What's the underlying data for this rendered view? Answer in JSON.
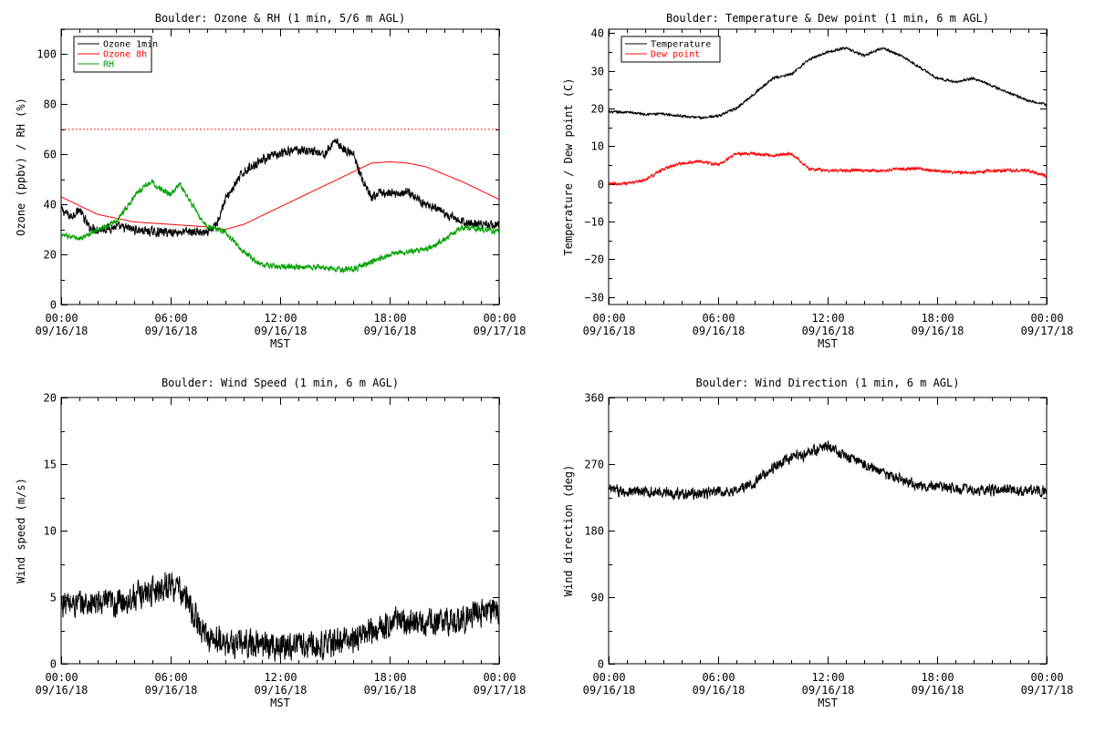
{
  "chart_data": [
    {
      "type": "line",
      "title": "Boulder: Ozone & RH (1 min, 5/6 m AGL)",
      "xlabel": "MST",
      "ylabel": "Ozone (ppbv) / RH (%)",
      "xlim": [
        0,
        24
      ],
      "ylim": [
        0,
        110
      ],
      "x_ticks": [
        0,
        6,
        12,
        18,
        24
      ],
      "x_tick_labels": [
        [
          "00:00",
          "09/16/18"
        ],
        [
          "06:00",
          "09/16/18"
        ],
        [
          "12:00",
          "09/16/18"
        ],
        [
          "18:00",
          "09/16/18"
        ],
        [
          "00:00",
          "09/17/18"
        ]
      ],
      "y_ticks": [
        0,
        20,
        40,
        60,
        80,
        100
      ],
      "y_tick_labels": [
        "0",
        "20",
        "40",
        "60",
        "80",
        "100"
      ],
      "legend_position": "top-left",
      "reference_line": {
        "y": 70,
        "color": "#ff0000",
        "style": "dotted"
      },
      "series": [
        {
          "name": "Ozone 1min",
          "color": "#000000",
          "noise": 2.5,
          "x": [
            0,
            0.5,
            1,
            1.5,
            2,
            3,
            4,
            5,
            6,
            7,
            7.5,
            8,
            8.5,
            9,
            10,
            11,
            12,
            13,
            14,
            14.5,
            15,
            15.5,
            16,
            16.5,
            17,
            17.5,
            18,
            19,
            20,
            21,
            22,
            23,
            24
          ],
          "y": [
            38,
            35,
            38,
            31,
            30,
            31,
            30,
            29,
            29,
            29,
            29,
            28,
            32,
            42,
            53,
            58,
            60,
            62,
            61,
            60,
            66,
            62,
            60,
            50,
            42,
            45,
            44,
            45,
            40,
            36,
            33,
            32,
            32
          ]
        },
        {
          "name": "Ozone 8h",
          "color": "#ff0000",
          "noise": 0,
          "x": [
            0,
            2,
            4,
            6,
            8,
            9,
            10,
            12,
            14,
            16,
            17,
            18,
            19,
            20,
            22,
            24
          ],
          "y": [
            43,
            36,
            33,
            32,
            31,
            30,
            32,
            39,
            46,
            53,
            56.5,
            57,
            56.5,
            55,
            49,
            42
          ]
        },
        {
          "name": "RH",
          "color": "#00a000",
          "noise": 1.5,
          "x": [
            0,
            1,
            2,
            3,
            4,
            4.5,
            5,
            5.5,
            6,
            6.5,
            7,
            7.5,
            8,
            9,
            10,
            11,
            12,
            13,
            14,
            15,
            16,
            17,
            18,
            19,
            20,
            21,
            22,
            23,
            24
          ],
          "y": [
            28,
            26,
            30,
            33,
            43,
            47,
            49,
            46,
            44,
            48,
            42,
            36,
            31,
            29,
            21,
            16,
            15,
            15,
            15,
            14,
            14,
            17,
            20,
            21,
            22,
            26,
            31,
            30,
            29
          ]
        }
      ]
    },
    {
      "type": "line",
      "title": "Boulder: Temperature & Dew point (1 min, 6 m AGL)",
      "xlabel": "MST",
      "ylabel": "Temperature / Dew point (C)",
      "xlim": [
        0,
        24
      ],
      "ylim": [
        -32,
        41
      ],
      "x_ticks": [
        0,
        6,
        12,
        18,
        24
      ],
      "x_tick_labels": [
        [
          "00:00",
          "09/16/18"
        ],
        [
          "06:00",
          "09/16/18"
        ],
        [
          "12:00",
          "09/16/18"
        ],
        [
          "18:00",
          "09/16/18"
        ],
        [
          "00:00",
          "09/17/18"
        ]
      ],
      "y_ticks": [
        -30,
        -20,
        -10,
        0,
        10,
        20,
        30,
        40
      ],
      "y_tick_labels": [
        "−30",
        "−20",
        "−10",
        "0",
        "10",
        "20",
        "30",
        "40"
      ],
      "legend_position": "top-left",
      "series": [
        {
          "name": "Temperature",
          "color": "#000000",
          "noise": 0.4,
          "x": [
            0,
            1,
            2,
            3,
            4,
            5,
            6,
            7,
            8,
            9,
            10,
            11,
            12,
            13,
            14,
            15,
            16,
            17,
            18,
            19,
            20,
            21,
            22,
            23,
            24
          ],
          "y": [
            19,
            19,
            18.5,
            18.5,
            18,
            17.5,
            18,
            20,
            24,
            28,
            29,
            33,
            35,
            36,
            34,
            36,
            34,
            31,
            28,
            27,
            28,
            26,
            24,
            22,
            21
          ]
        },
        {
          "name": "Dew point",
          "color": "#ff0000",
          "noise": 0.5,
          "x": [
            0,
            1,
            2,
            3,
            4,
            5,
            6,
            7,
            8,
            9,
            10,
            11,
            12,
            13,
            14,
            15,
            16,
            17,
            18,
            19,
            20,
            21,
            22,
            23,
            24
          ],
          "y": [
            0,
            0,
            1,
            4,
            5.5,
            6,
            5,
            8,
            8,
            7.5,
            8,
            4,
            3.5,
            3.5,
            3.5,
            3.5,
            4,
            4,
            3.5,
            3,
            3,
            3.5,
            3.5,
            3.5,
            2
          ]
        }
      ]
    },
    {
      "type": "line",
      "title": "Boulder: Wind Speed (1 min, 6 m AGL)",
      "xlabel": "MST",
      "ylabel": "Wind speed (m/s)",
      "xlim": [
        0,
        24
      ],
      "ylim": [
        0,
        20
      ],
      "x_ticks": [
        0,
        6,
        12,
        18,
        24
      ],
      "x_tick_labels": [
        [
          "00:00",
          "09/16/18"
        ],
        [
          "06:00",
          "09/16/18"
        ],
        [
          "12:00",
          "09/16/18"
        ],
        [
          "18:00",
          "09/16/18"
        ],
        [
          "00:00",
          "09/17/18"
        ]
      ],
      "y_ticks": [
        0,
        5,
        10,
        15,
        20
      ],
      "y_tick_labels": [
        "0",
        "5",
        "10",
        "15",
        "20"
      ],
      "series": [
        {
          "name": "",
          "color": "#000000",
          "noise": 1.4,
          "x": [
            0,
            1,
            2,
            3,
            4,
            5,
            6,
            6.5,
            7,
            7.5,
            8,
            9,
            10,
            11,
            12,
            13,
            14,
            15,
            16,
            17,
            18,
            18.5,
            19,
            20,
            21,
            22,
            23,
            24
          ],
          "y": [
            4.5,
            4.5,
            4.5,
            4.5,
            5,
            5.5,
            6,
            5.5,
            4.5,
            3,
            2,
            1.5,
            1.5,
            1.5,
            1.3,
            1.5,
            1.4,
            1.6,
            1.8,
            2.5,
            3,
            3.5,
            3,
            3,
            3.2,
            3.3,
            3.8,
            4
          ]
        }
      ]
    },
    {
      "type": "line",
      "title": "Boulder: Wind Direction (1 min, 6 m AGL)",
      "xlabel": "MST",
      "ylabel": "Wind direction (deg)",
      "xlim": [
        0,
        24
      ],
      "ylim": [
        0,
        360
      ],
      "x_ticks": [
        0,
        6,
        12,
        18,
        24
      ],
      "x_tick_labels": [
        [
          "00:00",
          "09/16/18"
        ],
        [
          "06:00",
          "09/16/18"
        ],
        [
          "12:00",
          "09/16/18"
        ],
        [
          "18:00",
          "09/16/18"
        ],
        [
          "00:00",
          "09/17/18"
        ]
      ],
      "y_ticks": [
        0,
        90,
        180,
        270,
        360
      ],
      "y_tick_labels": [
        "0",
        "90",
        "180",
        "270",
        "360"
      ],
      "series": [
        {
          "name": "",
          "color": "#000000",
          "noise": 10,
          "x": [
            0,
            1,
            2,
            3,
            4,
            5,
            6,
            7,
            8,
            9,
            10,
            11,
            12,
            13,
            14,
            15,
            16,
            17,
            18,
            19,
            20,
            21,
            22,
            23,
            24
          ],
          "y": [
            235,
            233,
            232,
            232,
            230,
            230,
            232,
            234,
            245,
            265,
            278,
            285,
            295,
            280,
            270,
            258,
            250,
            240,
            238,
            237,
            235,
            236,
            235,
            234,
            234
          ]
        }
      ]
    }
  ]
}
